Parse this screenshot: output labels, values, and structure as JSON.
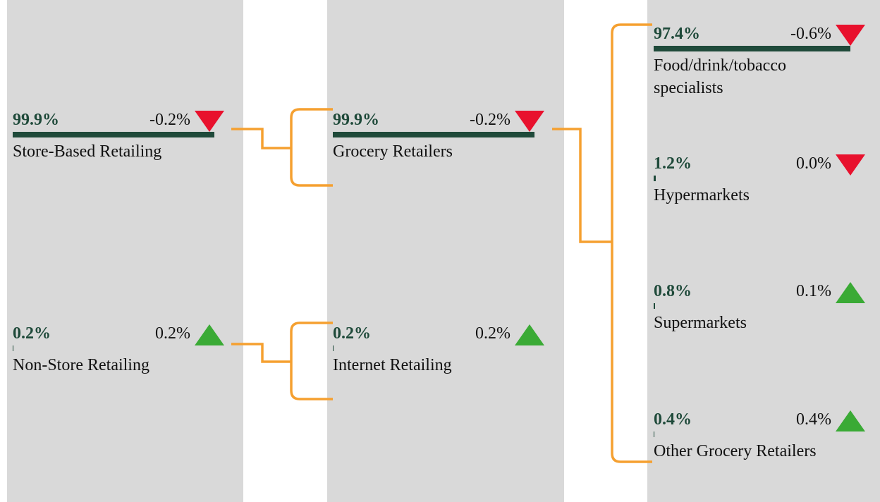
{
  "columns": [
    {
      "nodes": [
        {
          "share": 99.9,
          "share_label": "99.9%",
          "change": "-0.2%",
          "trend": "down",
          "label": "Store-Based Retailing"
        },
        {
          "share": 0.2,
          "share_label": "0.2%",
          "change": "0.2%",
          "trend": "up",
          "label": "Non-Store Retailing"
        }
      ]
    },
    {
      "nodes": [
        {
          "share": 99.9,
          "share_label": "99.9%",
          "change": "-0.2%",
          "trend": "down",
          "label": "Grocery Retailers"
        },
        {
          "share": 0.2,
          "share_label": "0.2%",
          "change": "0.2%",
          "trend": "up",
          "label": "Internet Retailing"
        }
      ]
    },
    {
      "nodes": [
        {
          "share": 97.4,
          "share_label": "97.4%",
          "change": "-0.6%",
          "trend": "down",
          "label": "Food/drink/tobacco specialists"
        },
        {
          "share": 1.2,
          "share_label": "1.2%",
          "change": "0.0%",
          "trend": "down",
          "label": "Hypermarkets"
        },
        {
          "share": 0.8,
          "share_label": "0.8%",
          "change": "0.1%",
          "trend": "up",
          "label": "Supermarkets"
        },
        {
          "share": 0.4,
          "share_label": "0.4%",
          "change": "0.4%",
          "trend": "up",
          "label": "Other Grocery Retailers"
        }
      ]
    }
  ]
}
